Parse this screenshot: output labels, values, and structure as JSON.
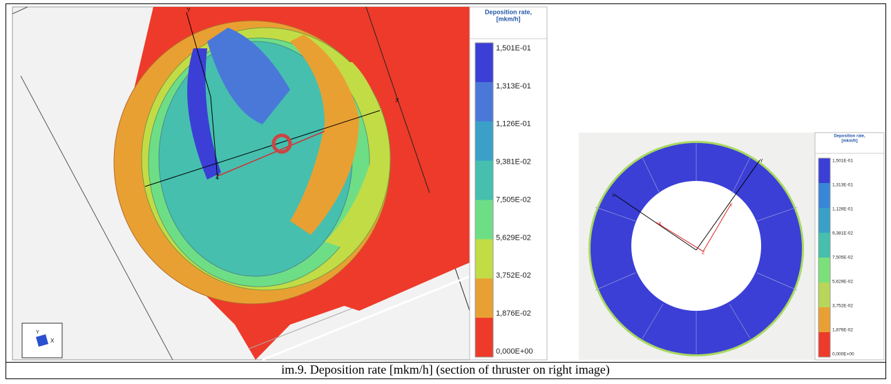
{
  "figure": {
    "left_image": {
      "legend": {
        "title_lines": [
          "Deposition rate,",
          "[mkm/h]"
        ],
        "ticks": [
          "1,501E-01",
          "1,313E-01",
          "1,126E-01",
          "9,381E-02",
          "7,505E-02",
          "5,629E-02",
          "3,752E-02",
          "1,876E-02",
          "0,000E+00"
        ],
        "colors": [
          "#3b3fd6",
          "#4a78d8",
          "#3aa0c8",
          "#46bfae",
          "#6ede86",
          "#c2dc46",
          "#e9a032",
          "#ee3a2a"
        ]
      },
      "axis_labels": [
        "Y",
        "X",
        "Z"
      ],
      "icon_labels": [
        "Y",
        "X"
      ]
    },
    "right_image": {
      "legend": {
        "title_lines": [
          "Deposition rate,",
          "[mkm/h]"
        ],
        "ticks": [
          "1,501E-01",
          "1,313E-01",
          "1,126E-01",
          "9,381E-02",
          "7,505E-02",
          "5,629E-02",
          "3,752E-02",
          "1,876E-02",
          "0,000E+00"
        ],
        "colors": [
          "#3b3fd6",
          "#3a86d6",
          "#3aa0c8",
          "#46bfae",
          "#7be07a",
          "#b8d65a",
          "#e9a032",
          "#ee3a2a"
        ]
      },
      "axis_labels": [
        "Y",
        "X",
        "X",
        "Y",
        "Z"
      ]
    },
    "caption": "im.9. Deposition rate [mkm/h] (section of thruster on right image)"
  }
}
